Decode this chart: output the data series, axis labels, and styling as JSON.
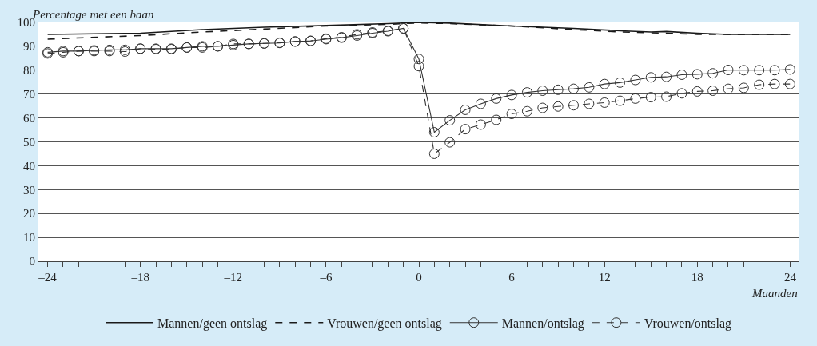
{
  "chart_data": {
    "type": "line",
    "xlabel": "Maanden",
    "ylabel": "Percentage met een baan",
    "xlim": [
      -24.6,
      24.6
    ],
    "ylim": [
      0,
      100
    ],
    "yticks": [
      0,
      10,
      20,
      30,
      40,
      50,
      60,
      70,
      80,
      90,
      100
    ],
    "xticks": [
      {
        "value": -24,
        "label": "–24"
      },
      {
        "value": -23,
        "label": null
      },
      {
        "value": -22,
        "label": null
      },
      {
        "value": -21,
        "label": null
      },
      {
        "value": -20,
        "label": null
      },
      {
        "value": -19,
        "label": null
      },
      {
        "value": -18,
        "label": "–18"
      },
      {
        "value": -17,
        "label": null
      },
      {
        "value": -16,
        "label": null
      },
      {
        "value": -15,
        "label": null
      },
      {
        "value": -14,
        "label": null
      },
      {
        "value": -13,
        "label": null
      },
      {
        "value": -12,
        "label": "–12"
      },
      {
        "value": -11,
        "label": null
      },
      {
        "value": -10,
        "label": null
      },
      {
        "value": -9,
        "label": null
      },
      {
        "value": -8,
        "label": null
      },
      {
        "value": -7,
        "label": null
      },
      {
        "value": -6,
        "label": "–6"
      },
      {
        "value": -5,
        "label": null
      },
      {
        "value": -4,
        "label": null
      },
      {
        "value": -3,
        "label": null
      },
      {
        "value": -2,
        "label": null
      },
      {
        "value": -1,
        "label": null
      },
      0,
      {
        "value": 1,
        "label": null
      },
      {
        "value": 2,
        "label": null
      },
      {
        "value": 3,
        "label": null
      },
      {
        "value": 4,
        "label": null
      },
      {
        "value": 5,
        "label": null
      },
      6,
      {
        "value": 7,
        "label": null
      },
      {
        "value": 8,
        "label": null
      },
      {
        "value": 9,
        "label": null
      },
      {
        "value": 10,
        "label": null
      },
      {
        "value": 11,
        "label": null
      },
      12,
      {
        "value": 13,
        "label": null
      },
      {
        "value": 14,
        "label": null
      },
      {
        "value": 15,
        "label": null
      },
      {
        "value": 16,
        "label": null
      },
      {
        "value": 17,
        "label": null
      },
      18,
      {
        "value": 19,
        "label": null
      },
      {
        "value": 20,
        "label": null
      },
      {
        "value": 21,
        "label": null
      },
      {
        "value": 22,
        "label": null
      },
      {
        "value": 23,
        "label": null
      },
      24
    ],
    "grid": "y",
    "legend": "bottom",
    "series": [
      {
        "name": "Mannen/geen ontslag",
        "color": "#1a1a1a",
        "line_style": "solid",
        "marker": "none",
        "x": [
          -24,
          -18,
          -14,
          -10,
          -6,
          -2,
          0,
          2,
          6,
          10,
          13,
          15,
          16,
          18,
          20,
          24
        ],
        "values": [
          95,
          95.5,
          97,
          98,
          98.7,
          99.5,
          100,
          99.7,
          98.5,
          97.5,
          96.5,
          96,
          96.2,
          95.5,
          95,
          95
        ]
      },
      {
        "name": "Vrouwen/geen ontslag",
        "color": "#1a1a1a",
        "line_style": "dashed",
        "marker": "none",
        "x": [
          -24,
          -18,
          -14,
          -10,
          -6,
          -2,
          0,
          2,
          6,
          10,
          13,
          16,
          18,
          20,
          24
        ],
        "values": [
          93,
          94.5,
          96,
          97.2,
          98.5,
          99.2,
          99.8,
          99.5,
          98.5,
          97,
          96,
          95.5,
          95,
          95,
          95
        ]
      },
      {
        "name": "Mannen/ontslag",
        "color": "#333333",
        "line_style": "solid",
        "marker": "circle",
        "x": [
          -24,
          -23,
          -22,
          -21,
          -20,
          -19,
          -18,
          -17,
          -16,
          -15,
          -14,
          -13,
          -12,
          -11,
          -10,
          -9,
          -8,
          -7,
          -6,
          -5,
          -4,
          -3,
          -2,
          -1,
          0,
          1,
          2,
          3,
          4,
          5,
          6,
          7,
          8,
          9,
          10,
          11,
          12,
          13,
          14,
          15,
          16,
          17,
          18,
          19,
          20,
          21,
          22,
          23,
          24
        ],
        "values": [
          87.5,
          88,
          88,
          88.3,
          88.5,
          88.5,
          89,
          89,
          89,
          89.5,
          90,
          90,
          90.5,
          91,
          91.2,
          91.4,
          92,
          92.2,
          93,
          93.6,
          94.5,
          95.5,
          96.3,
          97.5,
          84.7,
          54,
          59,
          63.4,
          65.9,
          68.1,
          69.6,
          70.7,
          71.4,
          71.8,
          72.2,
          72.8,
          74.2,
          74.8,
          75.9,
          77,
          77.2,
          78.1,
          78.3,
          78.7,
          80.1,
          80,
          80,
          80,
          80.3
        ]
      },
      {
        "name": "Vrouwen/ontslag",
        "color": "#333333",
        "line_style": "dashed",
        "marker": "circle",
        "x": [
          -24,
          -23,
          -22,
          -21,
          -20,
          -19,
          -18,
          -17,
          -16,
          -15,
          -14,
          -13,
          -12,
          -11,
          -10,
          -9,
          -8,
          -7,
          -6,
          -5,
          -4,
          -3,
          -2,
          -1,
          0,
          1,
          2,
          3,
          4,
          5,
          6,
          7,
          8,
          9,
          10,
          11,
          12,
          13,
          14,
          15,
          16,
          17,
          18,
          19,
          20,
          21,
          22,
          23,
          24
        ],
        "values": [
          87,
          87.5,
          88,
          88,
          88,
          87.8,
          89,
          88.8,
          88.8,
          89.5,
          89.5,
          90,
          91,
          91,
          91.2,
          91.5,
          92,
          92.3,
          93.2,
          93.8,
          95,
          95.8,
          96.5,
          97.5,
          81.7,
          45,
          49.8,
          55.3,
          57.2,
          59.2,
          61.7,
          62.8,
          64.2,
          64.8,
          65.3,
          65.9,
          66.4,
          67.2,
          68.1,
          68.7,
          68.9,
          70.3,
          71.1,
          71.4,
          72.2,
          72.6,
          73.9,
          74.2,
          74.2
        ]
      }
    ]
  }
}
